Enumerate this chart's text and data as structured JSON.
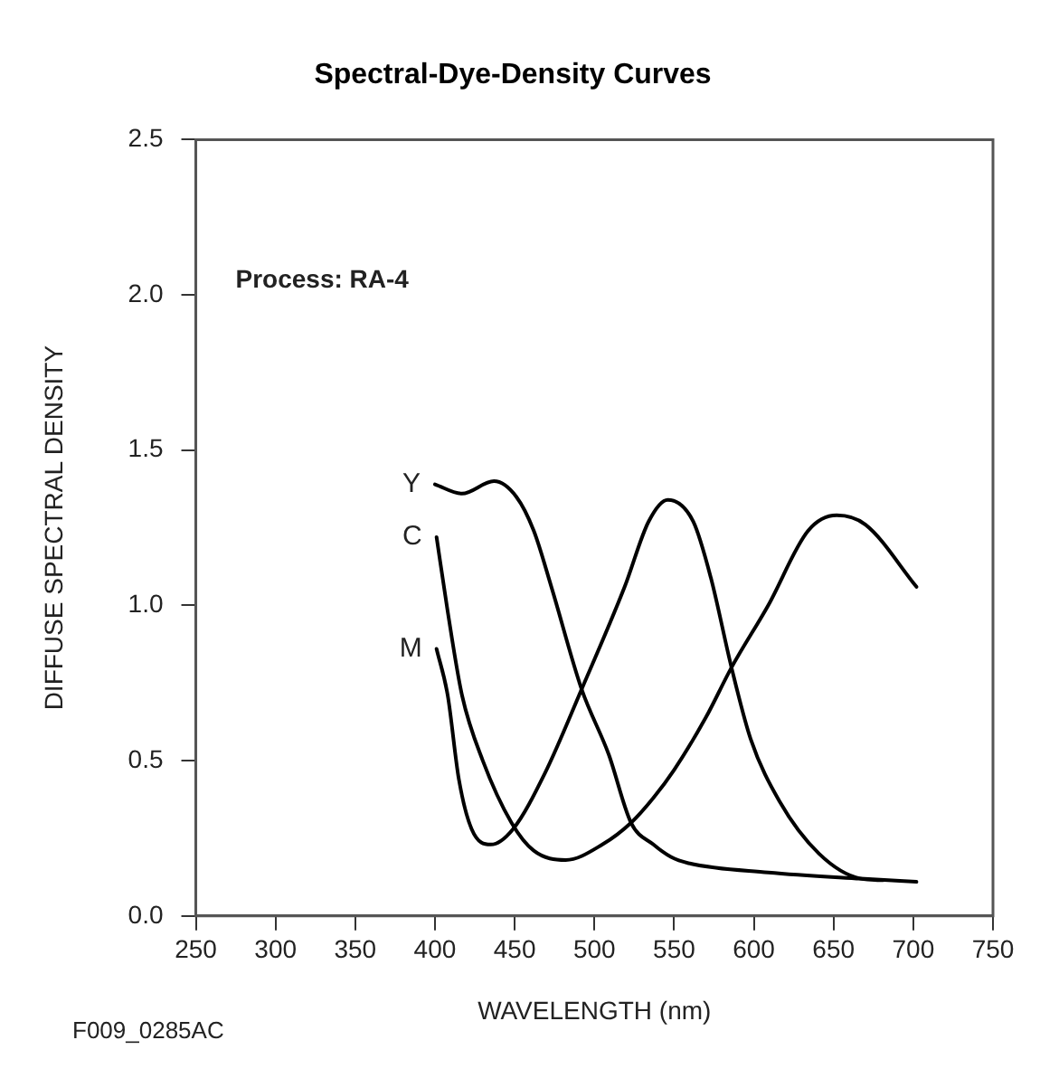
{
  "chart_data": {
    "type": "line",
    "title": "Spectral-Dye-Density Curves",
    "xlabel": "WAVELENGTH (nm)",
    "ylabel": "DIFFUSE SPECTRAL DENSITY",
    "annotations": [
      "Process: RA-4",
      "F009_0285AC"
    ],
    "xlim": [
      250,
      750
    ],
    "ylim": [
      0,
      2.5
    ],
    "xticks": [
      250,
      300,
      350,
      400,
      450,
      500,
      550,
      600,
      650,
      700,
      750
    ],
    "yticks": [
      {
        "value": 0,
        "label": "0.0"
      },
      {
        "value": 0.5,
        "label": "0.5"
      },
      {
        "value": 1,
        "label": "1.0"
      },
      {
        "value": 1.5,
        "label": "1.5"
      },
      {
        "value": 2,
        "label": "2.0"
      },
      {
        "value": 2.5,
        "label": "2.5"
      }
    ],
    "grid": false,
    "legend": false,
    "marker": "none",
    "line_style": "solid",
    "series": [
      {
        "name": "Y",
        "color": "#000000",
        "x": [
          400,
          417,
          437,
          451,
          462,
          473,
          492,
          509,
          523,
          537,
          548,
          559,
          609,
          667,
          702
        ],
        "values": [
          1.39,
          1.36,
          1.4,
          1.35,
          1.24,
          1.06,
          0.73,
          0.52,
          0.3,
          0.23,
          0.19,
          0.17,
          0.14,
          0.12,
          0.11
        ]
      },
      {
        "name": "C",
        "color": "#000000",
        "x": [
          401,
          408,
          417,
          430,
          448,
          462,
          482,
          505,
          523,
          537,
          550,
          570,
          586,
          609,
          634,
          652,
          670,
          702
        ],
        "values": [
          1.22,
          0.98,
          0.71,
          0.5,
          0.3,
          0.21,
          0.18,
          0.23,
          0.3,
          0.38,
          0.47,
          0.64,
          0.8,
          1.0,
          1.24,
          1.29,
          1.26,
          1.06
        ]
      },
      {
        "name": "M",
        "color": "#000000",
        "x": [
          401,
          408,
          415,
          423,
          435,
          449,
          469,
          492,
          519,
          534,
          546,
          562,
          573,
          586,
          598,
          616,
          641,
          667,
          681
        ],
        "values": [
          0.86,
          0.71,
          0.44,
          0.28,
          0.23,
          0.28,
          0.46,
          0.73,
          1.06,
          1.27,
          1.34,
          1.27,
          1.09,
          0.8,
          0.57,
          0.37,
          0.2,
          0.12,
          0.115
        ]
      }
    ]
  }
}
